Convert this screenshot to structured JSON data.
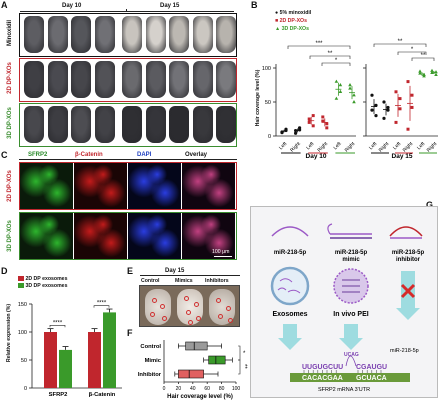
{
  "panels": {
    "A": {
      "label": "A",
      "day10": "Day 10",
      "day15": "Day 15",
      "rows": [
        "Minoxidil",
        "2D DP-XOs",
        "3D DP-XOs"
      ],
      "row_colors": [
        "#111111",
        "#c0262d",
        "#3a8d2f"
      ]
    },
    "B": {
      "label": "B",
      "ylabel": "Hair coverage level (%)",
      "legend": [
        "5% minoxidil",
        "2D DP-XOs",
        "3D DP-XOs"
      ],
      "legend_colors": [
        "#111111",
        "#c0262d",
        "#3a9a2a"
      ],
      "day10": "Day 10",
      "day15": "Day 15",
      "xticks": [
        "Left",
        "Right",
        "Left",
        "Right",
        "Left",
        "Right"
      ],
      "sig": [
        "***",
        "**",
        "*",
        "**",
        "*",
        "**"
      ]
    },
    "C": {
      "label": "C",
      "headers": [
        "SFRP2",
        "β-Catenin",
        "DAPI",
        "Overlay"
      ],
      "header_colors": [
        "#2a8a2a",
        "#c0262d",
        "#2040c0",
        "#111111"
      ],
      "rows": [
        "2D DP-XOs",
        "3D DP-XOs"
      ],
      "scale": "100 μm"
    },
    "D": {
      "label": "D",
      "legend": [
        "2D DP exosomes",
        "3D DP exosomes"
      ],
      "ylabel": "Relative expression (%)",
      "yticks": [
        "0",
        "50",
        "100",
        "150"
      ],
      "sig": [
        "****",
        "****"
      ]
    },
    "E": {
      "label": "E",
      "title": "Day 15",
      "columns": [
        "Control",
        "Mimics",
        "Inhibitors"
      ]
    },
    "F": {
      "label": "F",
      "categories": [
        "Control",
        "Mimic",
        "Inhibitor"
      ],
      "xlabel": "Hair coverage level (%)",
      "xticks": [
        "0",
        "20",
        "40",
        "60",
        "80",
        "100"
      ],
      "sig": [
        "*",
        "**"
      ]
    },
    "G": {
      "label": "G",
      "cols": [
        "miR-218-5p",
        "miR-218-5p mimic",
        "miR-218-5p inhibitor"
      ],
      "exosomes": "Exosomes",
      "pei": "In vivo PEI",
      "mir_label": "miR-218-5p",
      "top_seq": "UUGUGCUU",
      "top_seq2": "CGAUGU",
      "loop_seq": "UCAG",
      "bottom_seq": "CACACGAA",
      "bottom_seq2": "GCUACA",
      "target": "SFRP2 mRNA 3'UTR"
    }
  },
  "chart_data": [
    {
      "type": "scatter",
      "title": "",
      "ylabel": "Hair coverage level (%)",
      "ylim": [
        0,
        100
      ],
      "yticks": [
        0,
        50,
        100
      ],
      "panels": [
        "Day 10",
        "Day 15"
      ],
      "categories": [
        "Left",
        "Right",
        "Left",
        "Right",
        "Left",
        "Right"
      ],
      "series": [
        {
          "name": "5% minoxidil",
          "day10": [
            [
              6,
              10,
              5,
              8
            ],
            [
              8,
              12,
              4,
              9
            ]
          ],
          "day15": [
            [
              60,
              45,
              38,
              30
            ],
            [
              50,
              38,
              26,
              42
            ]
          ]
        },
        {
          "name": "2D DP-XOs",
          "day10": [
            [
              25,
              15,
              20,
              30
            ],
            [
              28,
              18,
              22,
              12
            ]
          ],
          "day15": [
            [
              65,
              55,
              20,
              40
            ],
            [
              80,
              42,
              10,
              60
            ]
          ]
        },
        {
          "name": "3D DP-XOs",
          "day10": [
            [
              80,
              65,
              55,
              75
            ],
            [
              75,
              60,
              70,
              50
            ]
          ],
          "day15": [
            [
              92,
              88,
              95,
              90
            ],
            [
              93,
              90,
              96,
              94
            ]
          ]
        }
      ]
    },
    {
      "type": "bar",
      "categories": [
        "SFRP2",
        "β-Catenin"
      ],
      "series": [
        {
          "name": "2D DP exosomes",
          "values": [
            100,
            100
          ],
          "errors": [
            6,
            6
          ]
        },
        {
          "name": "3D DP exosomes",
          "values": [
            68,
            135
          ],
          "errors": [
            6,
            6
          ]
        }
      ],
      "ylabel": "Relative expression (%)",
      "ylim": [
        0,
        150
      ]
    },
    {
      "type": "bar",
      "orientation": "horizontal",
      "categories": [
        "Control",
        "Mimic",
        "Inhibitor"
      ],
      "box": [
        {
          "min": 20,
          "q1": 30,
          "median": 42,
          "q3": 60,
          "max": 80
        },
        {
          "min": 55,
          "q1": 62,
          "median": 72,
          "q3": 85,
          "max": 95
        },
        {
          "min": 15,
          "q1": 20,
          "median": 35,
          "q3": 55,
          "max": 75
        }
      ],
      "xlabel": "Hair coverage level (%)",
      "xlim": [
        0,
        100
      ]
    }
  ]
}
